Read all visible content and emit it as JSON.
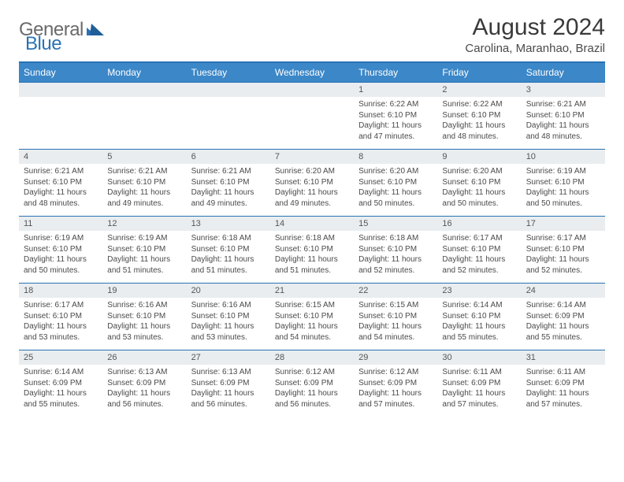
{
  "brand": {
    "word1": "General",
    "word2": "Blue"
  },
  "title": "August 2024",
  "location": "Carolina, Maranhao, Brazil",
  "colors": {
    "accent": "#3b87c8",
    "rule": "#2a72b5",
    "daybar": "#e9edef",
    "text": "#3a3a3a",
    "subtext": "#4a4a4a",
    "logo_grey": "#6a6a6a"
  },
  "weekdays": [
    "Sunday",
    "Monday",
    "Tuesday",
    "Wednesday",
    "Thursday",
    "Friday",
    "Saturday"
  ],
  "weeks": [
    {
      "nums": [
        "",
        "",
        "",
        "",
        "1",
        "2",
        "3"
      ],
      "cells": [
        null,
        null,
        null,
        null,
        {
          "sunrise": "6:22 AM",
          "sunset": "6:10 PM",
          "daylight": "11 hours and 47 minutes."
        },
        {
          "sunrise": "6:22 AM",
          "sunset": "6:10 PM",
          "daylight": "11 hours and 48 minutes."
        },
        {
          "sunrise": "6:21 AM",
          "sunset": "6:10 PM",
          "daylight": "11 hours and 48 minutes."
        }
      ]
    },
    {
      "nums": [
        "4",
        "5",
        "6",
        "7",
        "8",
        "9",
        "10"
      ],
      "cells": [
        {
          "sunrise": "6:21 AM",
          "sunset": "6:10 PM",
          "daylight": "11 hours and 48 minutes."
        },
        {
          "sunrise": "6:21 AM",
          "sunset": "6:10 PM",
          "daylight": "11 hours and 49 minutes."
        },
        {
          "sunrise": "6:21 AM",
          "sunset": "6:10 PM",
          "daylight": "11 hours and 49 minutes."
        },
        {
          "sunrise": "6:20 AM",
          "sunset": "6:10 PM",
          "daylight": "11 hours and 49 minutes."
        },
        {
          "sunrise": "6:20 AM",
          "sunset": "6:10 PM",
          "daylight": "11 hours and 50 minutes."
        },
        {
          "sunrise": "6:20 AM",
          "sunset": "6:10 PM",
          "daylight": "11 hours and 50 minutes."
        },
        {
          "sunrise": "6:19 AM",
          "sunset": "6:10 PM",
          "daylight": "11 hours and 50 minutes."
        }
      ]
    },
    {
      "nums": [
        "11",
        "12",
        "13",
        "14",
        "15",
        "16",
        "17"
      ],
      "cells": [
        {
          "sunrise": "6:19 AM",
          "sunset": "6:10 PM",
          "daylight": "11 hours and 50 minutes."
        },
        {
          "sunrise": "6:19 AM",
          "sunset": "6:10 PM",
          "daylight": "11 hours and 51 minutes."
        },
        {
          "sunrise": "6:18 AM",
          "sunset": "6:10 PM",
          "daylight": "11 hours and 51 minutes."
        },
        {
          "sunrise": "6:18 AM",
          "sunset": "6:10 PM",
          "daylight": "11 hours and 51 minutes."
        },
        {
          "sunrise": "6:18 AM",
          "sunset": "6:10 PM",
          "daylight": "11 hours and 52 minutes."
        },
        {
          "sunrise": "6:17 AM",
          "sunset": "6:10 PM",
          "daylight": "11 hours and 52 minutes."
        },
        {
          "sunrise": "6:17 AM",
          "sunset": "6:10 PM",
          "daylight": "11 hours and 52 minutes."
        }
      ]
    },
    {
      "nums": [
        "18",
        "19",
        "20",
        "21",
        "22",
        "23",
        "24"
      ],
      "cells": [
        {
          "sunrise": "6:17 AM",
          "sunset": "6:10 PM",
          "daylight": "11 hours and 53 minutes."
        },
        {
          "sunrise": "6:16 AM",
          "sunset": "6:10 PM",
          "daylight": "11 hours and 53 minutes."
        },
        {
          "sunrise": "6:16 AM",
          "sunset": "6:10 PM",
          "daylight": "11 hours and 53 minutes."
        },
        {
          "sunrise": "6:15 AM",
          "sunset": "6:10 PM",
          "daylight": "11 hours and 54 minutes."
        },
        {
          "sunrise": "6:15 AM",
          "sunset": "6:10 PM",
          "daylight": "11 hours and 54 minutes."
        },
        {
          "sunrise": "6:14 AM",
          "sunset": "6:10 PM",
          "daylight": "11 hours and 55 minutes."
        },
        {
          "sunrise": "6:14 AM",
          "sunset": "6:09 PM",
          "daylight": "11 hours and 55 minutes."
        }
      ]
    },
    {
      "nums": [
        "25",
        "26",
        "27",
        "28",
        "29",
        "30",
        "31"
      ],
      "cells": [
        {
          "sunrise": "6:14 AM",
          "sunset": "6:09 PM",
          "daylight": "11 hours and 55 minutes."
        },
        {
          "sunrise": "6:13 AM",
          "sunset": "6:09 PM",
          "daylight": "11 hours and 56 minutes."
        },
        {
          "sunrise": "6:13 AM",
          "sunset": "6:09 PM",
          "daylight": "11 hours and 56 minutes."
        },
        {
          "sunrise": "6:12 AM",
          "sunset": "6:09 PM",
          "daylight": "11 hours and 56 minutes."
        },
        {
          "sunrise": "6:12 AM",
          "sunset": "6:09 PM",
          "daylight": "11 hours and 57 minutes."
        },
        {
          "sunrise": "6:11 AM",
          "sunset": "6:09 PM",
          "daylight": "11 hours and 57 minutes."
        },
        {
          "sunrise": "6:11 AM",
          "sunset": "6:09 PM",
          "daylight": "11 hours and 57 minutes."
        }
      ]
    }
  ],
  "labels": {
    "sunrise": "Sunrise: ",
    "sunset": "Sunset: ",
    "daylight": "Daylight: "
  }
}
